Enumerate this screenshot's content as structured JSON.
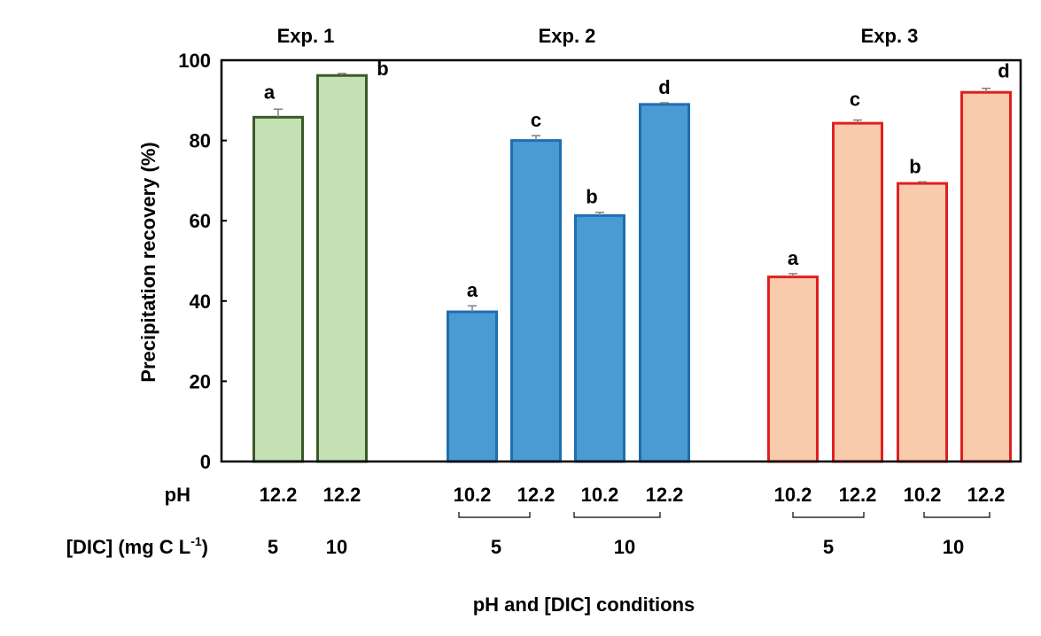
{
  "chart_data": {
    "type": "bar",
    "ylabel": "Precipitation recovery (%)",
    "xlabel": "pH and [DIC] conditions",
    "ylim": [
      0,
      100
    ],
    "yticks": [
      "0",
      "20",
      "40",
      "60",
      "80",
      "100"
    ],
    "grid": false,
    "row_labels": {
      "ph": "pH",
      "dic_main": "[DIC] (mg C L",
      "dic_sup": "-1",
      "dic_close": ")"
    },
    "groups": [
      {
        "name": "Exp. 1",
        "fill": "#c5e0b4",
        "stroke": "#3a5a2a",
        "bars": [
          {
            "ph": "12.2",
            "dic": "5",
            "value": 85.8,
            "err": 2.0,
            "letter": "a"
          },
          {
            "ph": "12.2",
            "dic": "10",
            "value": 96.2,
            "err": 0.5,
            "letter": "b"
          }
        ],
        "dic_labels": []
      },
      {
        "name": "Exp. 2",
        "fill": "#4a9bd4",
        "stroke": "#1f6fb0",
        "bars": [
          {
            "ph": "10.2",
            "value": 37.3,
            "err": 1.5,
            "letter": "a"
          },
          {
            "ph": "12.2",
            "value": 80.0,
            "err": 1.2,
            "letter": "c"
          },
          {
            "ph": "10.2",
            "value": 61.3,
            "err": 0.8,
            "letter": "b"
          },
          {
            "ph": "12.2",
            "value": 89.0,
            "err": 0.4,
            "letter": "d"
          }
        ],
        "dic_labels": [
          "5",
          "10"
        ]
      },
      {
        "name": "Exp. 3",
        "fill": "#f8cbad",
        "stroke": "#e02020",
        "bars": [
          {
            "ph": "10.2",
            "value": 46.0,
            "err": 0.8,
            "letter": "a"
          },
          {
            "ph": "12.2",
            "value": 84.3,
            "err": 0.8,
            "letter": "c"
          },
          {
            "ph": "10.2",
            "value": 69.3,
            "err": 0.4,
            "letter": "b"
          },
          {
            "ph": "12.2",
            "value": 92.0,
            "err": 1.0,
            "letter": "d"
          }
        ],
        "dic_labels": [
          "5",
          "10"
        ]
      }
    ]
  }
}
